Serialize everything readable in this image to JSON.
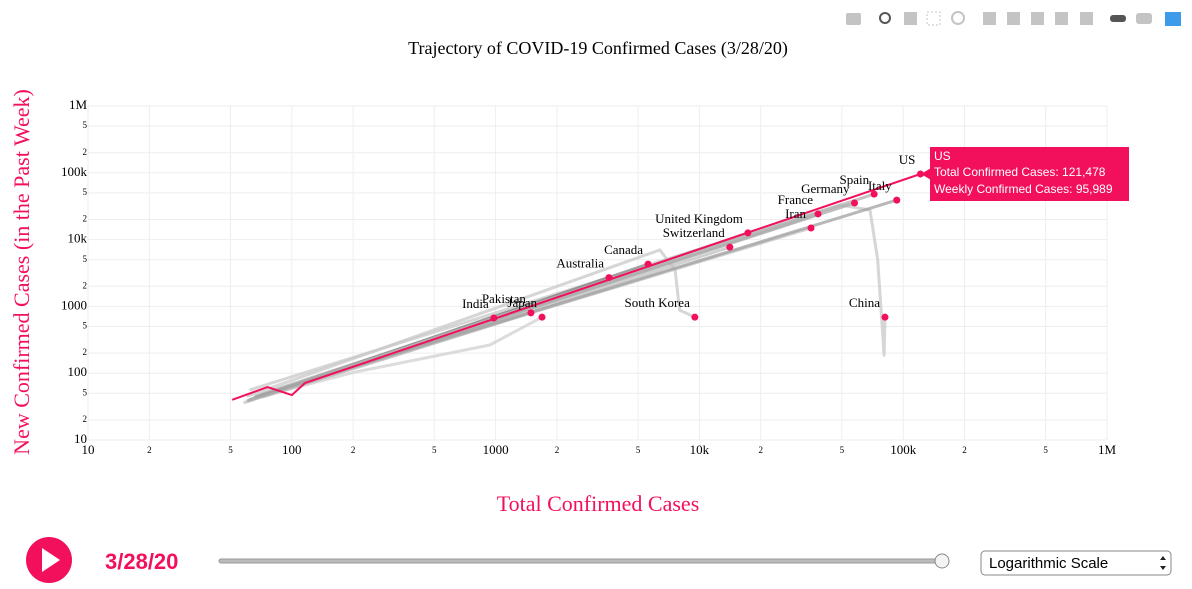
{
  "chart_data": {
    "type": "line",
    "title": "Trajectory of COVID-19 Confirmed Cases (3/28/20)",
    "xlabel": "Total Confirmed Cases",
    "ylabel": "New Confirmed Cases (in the Past Week)",
    "log_x": true,
    "log_y": true,
    "grid": true,
    "xlim": [
      10,
      1000000
    ],
    "ylim": [
      10,
      1000000
    ],
    "xticks": [
      10,
      {
        "value": 20,
        "label": "2"
      },
      {
        "value": 50,
        "label": "5"
      },
      100,
      {
        "value": 200,
        "label": "2"
      },
      {
        "value": 500,
        "label": "5"
      },
      1000,
      {
        "value": 2000,
        "label": "2"
      },
      {
        "value": 5000,
        "label": "5"
      },
      {
        "value": 10000,
        "label": "10k"
      },
      {
        "value": 20000,
        "label": "2"
      },
      {
        "value": 50000,
        "label": "5"
      },
      {
        "value": 100000,
        "label": "100k"
      },
      {
        "value": 200000,
        "label": "2"
      },
      {
        "value": 500000,
        "label": "5"
      },
      {
        "value": 1000000,
        "label": "1M"
      }
    ],
    "yticks": [
      10,
      {
        "value": 20,
        "label": "2"
      },
      {
        "value": 50,
        "label": "5"
      },
      100,
      {
        "value": 200,
        "label": "2"
      },
      {
        "value": 500,
        "label": "5"
      },
      1000,
      {
        "value": 2000,
        "label": "2"
      },
      {
        "value": 5000,
        "label": "5"
      },
      {
        "value": 10000,
        "label": "10k"
      },
      {
        "value": 20000,
        "label": "2"
      },
      {
        "value": 50000,
        "label": "5"
      },
      {
        "value": 100000,
        "label": "100k"
      },
      {
        "value": 200000,
        "label": "2"
      },
      {
        "value": 500000,
        "label": "5"
      },
      {
        "value": 1000000,
        "label": "1M"
      }
    ],
    "marker_color": "#f2105c",
    "series": [
      {
        "name": "China",
        "color": "#c8c8c8",
        "x": [
          62,
          49000,
          68700,
          75000,
          80600,
          81400
        ],
        "values": [
          56,
          33000,
          27700,
          4960,
          186,
          690
        ]
      },
      {
        "name": "South Korea",
        "color": "#c8c8c8",
        "x": [
          60,
          6400,
          7600,
          8000,
          9500
        ],
        "values": [
          45,
          7000,
          3500,
          880,
          690
        ]
      },
      {
        "name": "Japan",
        "color": "#d0d0d0",
        "x": [
          65,
          204,
          937,
          1690
        ],
        "values": [
          42,
          104,
          264,
          690
        ]
      },
      {
        "name": "India",
        "color": "#b0b0b0",
        "x": [
          70,
          980
        ],
        "values": [
          48,
          670
        ]
      },
      {
        "name": "Pakistan",
        "color": "#b0b0b0",
        "x": [
          72,
          1490
        ],
        "values": [
          44,
          800
        ]
      },
      {
        "name": "Australia",
        "color": "#9a9a9a",
        "x": [
          60,
          3600
        ],
        "values": [
          38,
          2700
        ]
      },
      {
        "name": "Canada",
        "color": "#8a8a8a",
        "x": [
          62,
          5600
        ],
        "values": [
          40,
          4300
        ]
      },
      {
        "name": "Switzerland",
        "color": "#c0c0c0",
        "x": [
          58,
          14100
        ],
        "values": [
          36,
          7700
        ]
      },
      {
        "name": "United Kingdom",
        "color": "#b8b8b8",
        "x": [
          64,
          17300
        ],
        "values": [
          41,
          12600
        ]
      },
      {
        "name": "Iran",
        "color": "#c0c0c0",
        "x": [
          66,
          35300
        ],
        "values": [
          45,
          14900
        ]
      },
      {
        "name": "France",
        "color": "#b8b8b8",
        "x": [
          63,
          38200
        ],
        "values": [
          40,
          24200
        ]
      },
      {
        "name": "Germany",
        "color": "#a8a8a8",
        "x": [
          61,
          57700
        ],
        "values": [
          39,
          35300
        ]
      },
      {
        "name": "Spain",
        "color": "#b0b0b0",
        "x": [
          64,
          72000
        ],
        "values": [
          42,
          48000
        ]
      },
      {
        "name": "Italy",
        "color": "#a0a0a0",
        "x": [
          66,
          93000
        ],
        "values": [
          44,
          39000
        ]
      },
      {
        "name": "US",
        "color": "#f2105c",
        "x": [
          51,
          76,
          100,
          116,
          121478
        ],
        "values": [
          40,
          62,
          47,
          71,
          95989
        ]
      }
    ],
    "tooltip": {
      "name": "US",
      "line1": "Total Confirmed Cases: 121,478",
      "line2": "Weekly Confirmed Cases: 95,989"
    }
  },
  "controls": {
    "date": "3/28/20",
    "scale_option": "Logarithmic Scale"
  }
}
